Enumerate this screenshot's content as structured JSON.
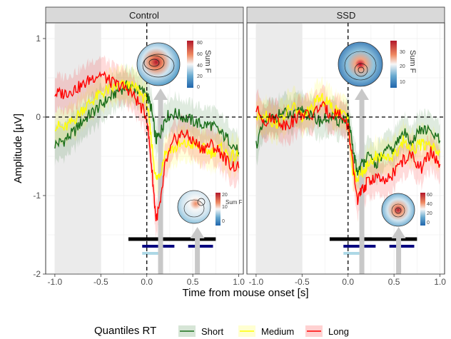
{
  "chart_data": {
    "type": "line",
    "xlabel": "Time from mouse onset [s]",
    "ylabel": "Amplitude [µV]",
    "xlim": [
      -1.1,
      1.05
    ],
    "ylim": [
      -2.0,
      1.2
    ],
    "x_ticks": [
      "-1.0",
      "-0.5",
      "0.0",
      "0.5",
      "1.0"
    ],
    "y_ticks": [
      "1",
      "0",
      "-1",
      "-2"
    ],
    "x_tick_values": [
      -1.0,
      -0.5,
      0.0,
      0.5,
      1.0
    ],
    "y_tick_values": [
      1,
      0,
      -1,
      -2
    ],
    "grid": true,
    "legend": {
      "title": "Quantiles RT",
      "position": "bottom",
      "entries": [
        {
          "label": "Short",
          "color": "#1a6e1a"
        },
        {
          "label": "Medium",
          "color": "#ffff00"
        },
        {
          "label": "Long",
          "color": "#ff0000"
        }
      ]
    },
    "shaded_interval": [
      -1.0,
      -0.5
    ],
    "zero_lines": {
      "x": 0.0,
      "y": 0.0
    },
    "x": [
      -1.0,
      -0.9,
      -0.8,
      -0.7,
      -0.6,
      -0.5,
      -0.4,
      -0.3,
      -0.2,
      -0.1,
      0.0,
      0.05,
      0.1,
      0.15,
      0.2,
      0.3,
      0.4,
      0.5,
      0.6,
      0.7,
      0.8,
      0.9,
      1.0
    ],
    "panels": [
      {
        "title": "Control",
        "series": [
          {
            "name": "Short",
            "color": "#1a6e1a",
            "values": [
              -0.35,
              -0.3,
              -0.2,
              -0.05,
              0.05,
              0.15,
              0.25,
              0.35,
              0.4,
              0.35,
              0.3,
              0.1,
              -0.3,
              -0.2,
              0.0,
              0.05,
              0.0,
              -0.05,
              -0.1,
              -0.1,
              -0.2,
              -0.3,
              -0.45
            ]
          },
          {
            "name": "Medium",
            "color": "#ffff00",
            "values": [
              -0.1,
              -0.15,
              -0.05,
              0.1,
              0.2,
              0.3,
              0.35,
              0.4,
              0.4,
              0.35,
              0.2,
              -0.3,
              -0.8,
              -0.7,
              -0.45,
              -0.4,
              -0.35,
              -0.35,
              -0.4,
              -0.45,
              -0.4,
              -0.5,
              -0.5
            ]
          },
          {
            "name": "Long",
            "color": "#ff0000",
            "values": [
              0.3,
              0.3,
              0.35,
              0.4,
              0.5,
              0.55,
              0.45,
              0.4,
              0.35,
              0.2,
              0.0,
              -0.6,
              -1.3,
              -1.1,
              -0.6,
              -0.3,
              -0.2,
              -0.3,
              -0.4,
              -0.35,
              -0.45,
              -0.6,
              -0.65
            ]
          }
        ],
        "significance_bars": [
          {
            "color": "#000000",
            "x": [
              -0.2,
              0.75
            ]
          },
          {
            "color": "#000080",
            "x": [
              -0.05,
              0.3
            ]
          },
          {
            "color": "#000080",
            "x": [
              0.45,
              0.72
            ]
          },
          {
            "color": "#add8e6",
            "x": [
              -0.05,
              0.15
            ]
          }
        ],
        "topomaps": [
          {
            "colorbar_title": "Sum F",
            "colorbar_ticks": [
              "80",
              "60",
              "40",
              "20",
              "0"
            ]
          },
          {
            "colorbar_title": "Sum F",
            "colorbar_ticks": [
              "20",
              "10",
              "0"
            ]
          }
        ]
      },
      {
        "title": "SSD",
        "series": [
          {
            "name": "Short",
            "color": "#1a6e1a",
            "values": [
              -0.35,
              -0.05,
              0.0,
              0.05,
              0.0,
              0.1,
              0.0,
              -0.05,
              0.0,
              -0.05,
              0.0,
              -0.4,
              -0.7,
              -0.6,
              -0.5,
              -0.6,
              -0.45,
              -0.4,
              -0.2,
              -0.3,
              -0.15,
              -0.2,
              -0.3
            ]
          },
          {
            "name": "Medium",
            "color": "#ffff00",
            "values": [
              0.0,
              0.05,
              -0.1,
              0.0,
              0.15,
              0.0,
              0.1,
              0.25,
              0.15,
              0.05,
              0.0,
              -0.7,
              -0.8,
              -0.7,
              -0.65,
              -0.5,
              -0.5,
              -0.5,
              -0.3,
              -0.4,
              -0.35,
              -0.35,
              -0.45
            ]
          },
          {
            "name": "Long",
            "color": "#ff0000",
            "values": [
              0.1,
              -0.05,
              0.0,
              -0.1,
              -0.05,
              0.05,
              0.0,
              0.15,
              0.05,
              0.05,
              -0.1,
              -0.6,
              -1.05,
              -0.95,
              -0.85,
              -0.75,
              -0.85,
              -0.7,
              -0.55,
              -0.5,
              -0.65,
              -0.45,
              -0.6
            ]
          }
        ],
        "significance_bars": [
          {
            "color": "#000000",
            "x": [
              -0.2,
              0.75
            ]
          },
          {
            "color": "#000080",
            "x": [
              -0.05,
              0.3
            ]
          },
          {
            "color": "#000080",
            "x": [
              0.45,
              0.72
            ]
          },
          {
            "color": "#add8e6",
            "x": [
              -0.05,
              0.15
            ]
          }
        ],
        "topomaps": [
          {
            "colorbar_title": "Sum F",
            "colorbar_ticks": [
              "30",
              "20",
              "10"
            ]
          },
          {
            "colorbar_title": "Sum F",
            "colorbar_ticks": [
              "60",
              "40",
              "20",
              "0"
            ]
          }
        ]
      }
    ]
  }
}
